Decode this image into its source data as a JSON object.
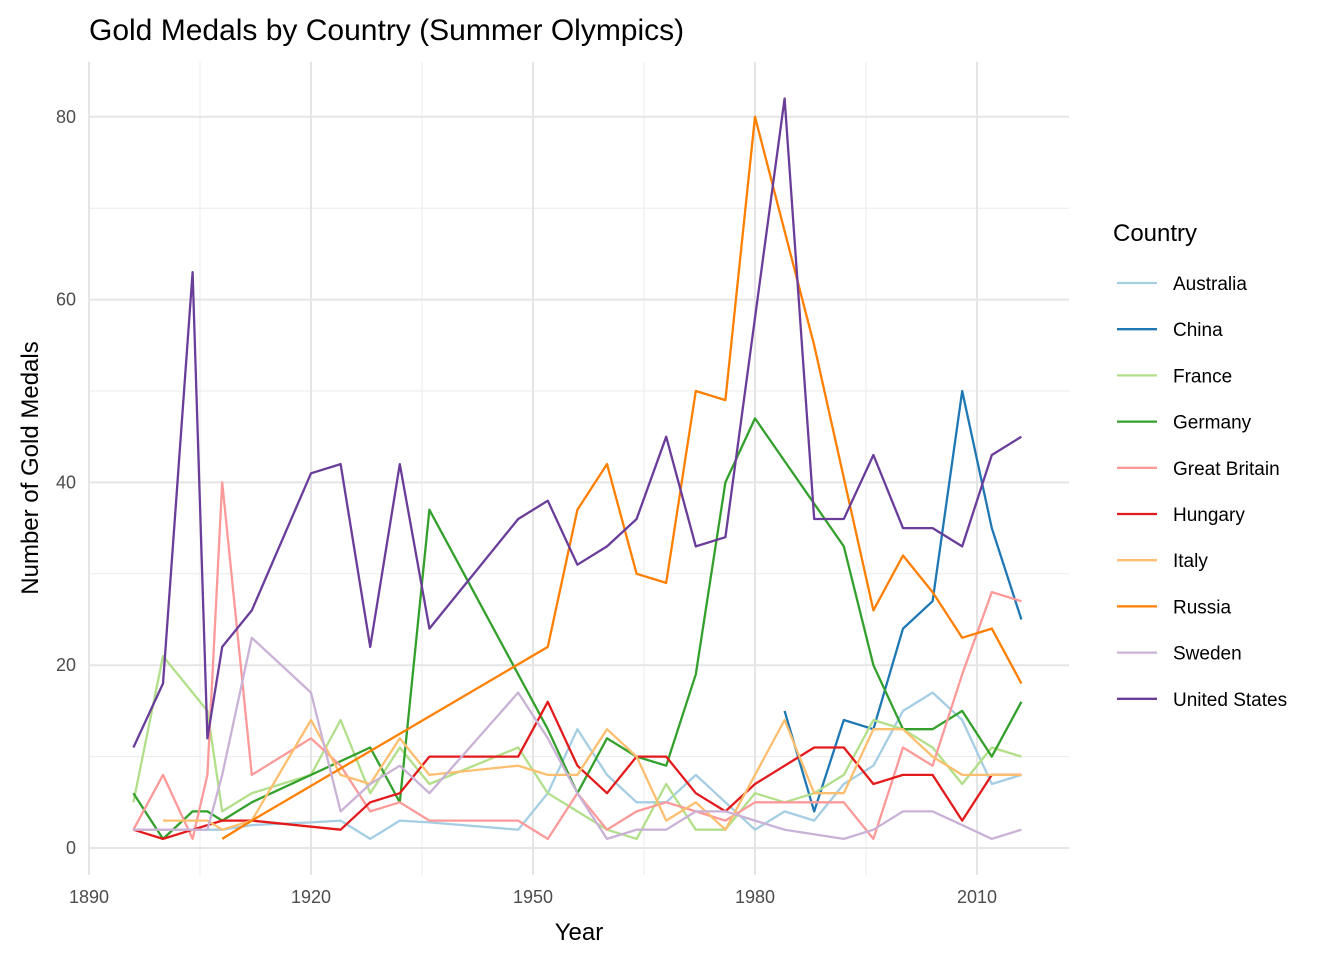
{
  "chart_data": {
    "type": "line",
    "title": "Gold Medals by Country (Summer Olympics)",
    "xlabel": "Year",
    "ylabel": "Number of Gold Medals",
    "xlim": [
      1890,
      2016
    ],
    "ylim": [
      0,
      85
    ],
    "x_ticks": [
      1890,
      1920,
      1950,
      1980,
      2010
    ],
    "y_ticks": [
      0,
      20,
      40,
      60,
      80
    ],
    "grid": true,
    "legend_title": "Country",
    "legend_position": "right",
    "series": [
      {
        "name": "Australia",
        "color": "#a6cee3",
        "points": [
          [
            1896,
            2
          ],
          [
            1900,
            2
          ],
          [
            1904,
            2
          ],
          [
            1906,
            2
          ],
          [
            1908,
            2
          ],
          [
            1912,
            2.5
          ],
          [
            1920,
            2.8
          ],
          [
            1924,
            3
          ],
          [
            1928,
            1
          ],
          [
            1932,
            3
          ],
          [
            1936,
            2.8
          ],
          [
            1948,
            2
          ],
          [
            1952,
            6
          ],
          [
            1956,
            13
          ],
          [
            1960,
            8
          ],
          [
            1964,
            5
          ],
          [
            1968,
            5
          ],
          [
            1972,
            8
          ],
          [
            1976,
            5
          ],
          [
            1980,
            2
          ],
          [
            1984,
            4
          ],
          [
            1988,
            3
          ],
          [
            1992,
            7
          ],
          [
            1996,
            9
          ],
          [
            2000,
            15
          ],
          [
            2004,
            17
          ],
          [
            2008,
            14
          ],
          [
            2012,
            7
          ],
          [
            2016,
            8
          ]
        ]
      },
      {
        "name": "China",
        "color": "#1f78b4",
        "points": [
          [
            1984,
            15
          ],
          [
            1988,
            4
          ],
          [
            1992,
            14
          ],
          [
            1996,
            13
          ],
          [
            2000,
            24
          ],
          [
            2004,
            27
          ],
          [
            2008,
            50
          ],
          [
            2012,
            35
          ],
          [
            2016,
            25
          ]
        ]
      },
      {
        "name": "France",
        "color": "#b2df8a",
        "points": [
          [
            1896,
            5
          ],
          [
            1900,
            21
          ],
          [
            1906,
            15
          ],
          [
            1908,
            4
          ],
          [
            1912,
            6
          ],
          [
            1920,
            8
          ],
          [
            1924,
            14
          ],
          [
            1928,
            6
          ],
          [
            1932,
            11
          ],
          [
            1936,
            7
          ],
          [
            1948,
            11
          ],
          [
            1952,
            6
          ],
          [
            1956,
            4
          ],
          [
            1960,
            2
          ],
          [
            1964,
            1
          ],
          [
            1968,
            7
          ],
          [
            1972,
            2
          ],
          [
            1976,
            2
          ],
          [
            1980,
            6
          ],
          [
            1984,
            5
          ],
          [
            1988,
            6
          ],
          [
            1992,
            8
          ],
          [
            1996,
            14
          ],
          [
            2000,
            13
          ],
          [
            2004,
            11
          ],
          [
            2008,
            7
          ],
          [
            2012,
            11
          ],
          [
            2016,
            10
          ]
        ]
      },
      {
        "name": "Germany",
        "color": "#33a02c",
        "points": [
          [
            1896,
            6
          ],
          [
            1900,
            1
          ],
          [
            1904,
            4
          ],
          [
            1906,
            4
          ],
          [
            1908,
            3
          ],
          [
            1912,
            5
          ],
          [
            1928,
            11
          ],
          [
            1932,
            5
          ],
          [
            1936,
            37
          ],
          [
            1952,
            13
          ],
          [
            1956,
            6
          ],
          [
            1960,
            12
          ],
          [
            1964,
            10
          ],
          [
            1968,
            9
          ],
          [
            1972,
            19
          ],
          [
            1976,
            40
          ],
          [
            1980,
            47
          ],
          [
            1992,
            33
          ],
          [
            1996,
            20
          ],
          [
            2000,
            13
          ],
          [
            2004,
            13
          ],
          [
            2008,
            15
          ],
          [
            2012,
            10
          ],
          [
            2016,
            16
          ]
        ]
      },
      {
        "name": "Great Britain",
        "color": "#fb9a99",
        "points": [
          [
            1896,
            2
          ],
          [
            1900,
            8
          ],
          [
            1904,
            1
          ],
          [
            1906,
            8
          ],
          [
            1908,
            40
          ],
          [
            1912,
            8
          ],
          [
            1920,
            12
          ],
          [
            1924,
            9
          ],
          [
            1928,
            4
          ],
          [
            1932,
            5
          ],
          [
            1936,
            3
          ],
          [
            1948,
            3
          ],
          [
            1952,
            1
          ],
          [
            1956,
            6
          ],
          [
            1960,
            2
          ],
          [
            1964,
            4
          ],
          [
            1968,
            5
          ],
          [
            1972,
            4
          ],
          [
            1976,
            3
          ],
          [
            1980,
            5
          ],
          [
            1984,
            5
          ],
          [
            1988,
            5
          ],
          [
            1992,
            5
          ],
          [
            1996,
            1
          ],
          [
            2000,
            11
          ],
          [
            2004,
            9
          ],
          [
            2008,
            19
          ],
          [
            2012,
            28
          ],
          [
            2016,
            27
          ]
        ]
      },
      {
        "name": "Hungary",
        "color": "#e31a1c",
        "points": [
          [
            1896,
            2
          ],
          [
            1900,
            1
          ],
          [
            1904,
            2
          ],
          [
            1908,
            3
          ],
          [
            1912,
            3
          ],
          [
            1924,
            2
          ],
          [
            1928,
            5
          ],
          [
            1932,
            6
          ],
          [
            1936,
            10
          ],
          [
            1948,
            10
          ],
          [
            1952,
            16
          ],
          [
            1956,
            9
          ],
          [
            1960,
            6
          ],
          [
            1964,
            10
          ],
          [
            1968,
            10
          ],
          [
            1972,
            6
          ],
          [
            1976,
            4
          ],
          [
            1980,
            7
          ],
          [
            1988,
            11
          ],
          [
            1992,
            11
          ],
          [
            1996,
            7
          ],
          [
            2000,
            8
          ],
          [
            2004,
            8
          ],
          [
            2008,
            3
          ],
          [
            2012,
            8
          ],
          [
            2016,
            8
          ]
        ]
      },
      {
        "name": "Italy",
        "color": "#fdbf6f",
        "points": [
          [
            1900,
            3
          ],
          [
            1906,
            3
          ],
          [
            1908,
            2
          ],
          [
            1912,
            3
          ],
          [
            1920,
            14
          ],
          [
            1924,
            8
          ],
          [
            1928,
            7
          ],
          [
            1932,
            12
          ],
          [
            1936,
            8
          ],
          [
            1948,
            9
          ],
          [
            1952,
            8
          ],
          [
            1956,
            8
          ],
          [
            1960,
            13
          ],
          [
            1964,
            10
          ],
          [
            1968,
            3
          ],
          [
            1972,
            5
          ],
          [
            1976,
            2
          ],
          [
            1980,
            8
          ],
          [
            1984,
            14
          ],
          [
            1988,
            6
          ],
          [
            1992,
            6
          ],
          [
            1996,
            13
          ],
          [
            2000,
            13
          ],
          [
            2004,
            10
          ],
          [
            2008,
            8
          ],
          [
            2012,
            8
          ],
          [
            2016,
            8
          ]
        ]
      },
      {
        "name": "Russia",
        "color": "#ff7f00",
        "points": [
          [
            1908,
            1
          ],
          [
            1912,
            3
          ],
          [
            1952,
            22
          ],
          [
            1956,
            37
          ],
          [
            1960,
            42
          ],
          [
            1964,
            30
          ],
          [
            1968,
            29
          ],
          [
            1972,
            50
          ],
          [
            1976,
            49
          ],
          [
            1980,
            80
          ],
          [
            1988,
            55
          ],
          [
            1996,
            26
          ],
          [
            2000,
            32
          ],
          [
            2004,
            28
          ],
          [
            2008,
            23
          ],
          [
            2012,
            24
          ],
          [
            2016,
            18
          ]
        ]
      },
      {
        "name": "Sweden",
        "color": "#cab2d6",
        "points": [
          [
            1896,
            2
          ],
          [
            1904,
            2
          ],
          [
            1906,
            2
          ],
          [
            1908,
            8
          ],
          [
            1912,
            23
          ],
          [
            1920,
            17
          ],
          [
            1924,
            4
          ],
          [
            1928,
            7
          ],
          [
            1932,
            9
          ],
          [
            1936,
            6
          ],
          [
            1948,
            17
          ],
          [
            1952,
            12
          ],
          [
            1956,
            6
          ],
          [
            1960,
            1
          ],
          [
            1964,
            2
          ],
          [
            1968,
            2
          ],
          [
            1972,
            4
          ],
          [
            1976,
            4
          ],
          [
            1980,
            3
          ],
          [
            1984,
            2
          ],
          [
            1992,
            1
          ],
          [
            1996,
            2
          ],
          [
            2000,
            4
          ],
          [
            2004,
            4
          ],
          [
            2008,
            2.5
          ],
          [
            2012,
            1
          ],
          [
            2016,
            2
          ]
        ]
      },
      {
        "name": "United States",
        "color": "#6a3d9a",
        "points": [
          [
            1896,
            11
          ],
          [
            1900,
            18
          ],
          [
            1904,
            63
          ],
          [
            1906,
            12
          ],
          [
            1908,
            22
          ],
          [
            1912,
            26
          ],
          [
            1920,
            41
          ],
          [
            1924,
            42
          ],
          [
            1928,
            22
          ],
          [
            1932,
            42
          ],
          [
            1936,
            24
          ],
          [
            1948,
            36
          ],
          [
            1952,
            38
          ],
          [
            1956,
            31
          ],
          [
            1960,
            33
          ],
          [
            1964,
            36
          ],
          [
            1968,
            45
          ],
          [
            1972,
            33
          ],
          [
            1976,
            34
          ],
          [
            1984,
            82
          ],
          [
            1988,
            36
          ],
          [
            1992,
            36
          ],
          [
            1996,
            43
          ],
          [
            2000,
            35
          ],
          [
            2004,
            35
          ],
          [
            2008,
            33
          ],
          [
            2012,
            43
          ],
          [
            2016,
            45
          ]
        ]
      }
    ]
  }
}
